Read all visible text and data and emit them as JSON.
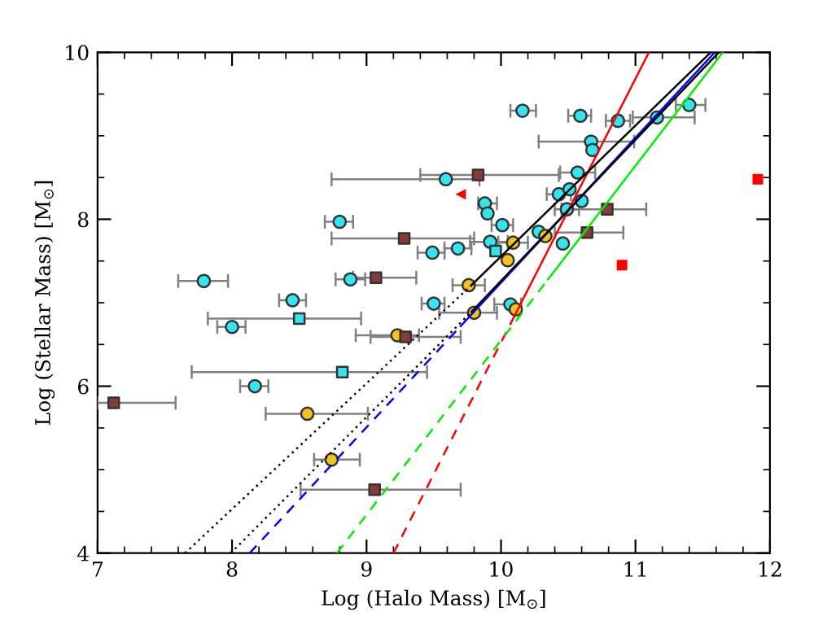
{
  "chart_data": {
    "type": "scatter",
    "xlabel": "Log (Halo Mass) [M$_{⊙}$]",
    "ylabel": "Log (Stellar Mass) [M$_{⊙}$]",
    "xlim": [
      7,
      12
    ],
    "ylim": [
      4,
      10
    ],
    "xticks": [
      7,
      8,
      9,
      10,
      11,
      12
    ],
    "yticks": [
      4,
      6,
      8,
      10
    ],
    "grid": false,
    "legend": false,
    "series": [
      {
        "type": "line",
        "color": "#ff0000",
        "line_style": "dashed",
        "marker": "none",
        "x": [
          9.2,
          10.1
        ],
        "values": [
          4,
          6.84
        ]
      },
      {
        "type": "line",
        "color": "#ff0000",
        "line_style": "solid",
        "marker": "none",
        "x": [
          10.1,
          11.1
        ],
        "values": [
          6.84,
          10
        ]
      },
      {
        "type": "line",
        "color": "#00ee00",
        "line_style": "dashed",
        "marker": "none",
        "x": [
          8.78,
          10.35
        ],
        "values": [
          4,
          7.28
        ]
      },
      {
        "type": "line",
        "color": "#00ee00",
        "line_style": "solid",
        "marker": "none",
        "x": [
          10.35,
          11.65
        ],
        "values": [
          7.28,
          10
        ]
      },
      {
        "type": "line",
        "color": "#0000ff",
        "line_style": "dashed",
        "marker": "none",
        "x": [
          8.13,
          9.7
        ],
        "values": [
          4,
          6.72
        ]
      },
      {
        "type": "line",
        "color": "#0000ff",
        "line_style": "solid",
        "marker": "none",
        "x": [
          9.7,
          11.59
        ],
        "values": [
          6.72,
          10
        ]
      },
      {
        "type": "line",
        "color": "#000000",
        "line_style": "dotted",
        "marker": "none",
        "x": [
          7.65,
          9.78
        ],
        "values": [
          4,
          7.21
        ]
      },
      {
        "type": "line",
        "color": "#000000",
        "line_style": "solid",
        "marker": "none",
        "x": [
          9.78,
          11.56
        ],
        "values": [
          7.21,
          10
        ]
      },
      {
        "type": "line",
        "color": "#000000",
        "line_style": "dotted",
        "marker": "none",
        "x": [
          7.99,
          9.78
        ],
        "values": [
          4,
          6.89
        ]
      },
      {
        "type": "line",
        "color": "#000000",
        "line_style": "solid",
        "marker": "none",
        "x": [
          9.78,
          11.62
        ],
        "values": [
          6.89,
          10
        ]
      },
      {
        "color": "#33e6ee",
        "marker": "circle",
        "x": [
          9.59,
          8.8,
          9.49,
          9.68,
          7.79,
          8.88,
          8.45,
          9.5,
          8.0,
          8.17,
          10.07,
          10.16,
          10.59,
          10.87,
          11.16,
          11.4,
          10.67,
          10.68,
          10.57,
          10.43,
          10.51,
          9.88,
          9.9,
          10.6,
          10.49,
          10.01,
          9.92,
          10.46,
          10.28
        ],
        "values": [
          8.48,
          7.97,
          7.6,
          7.65,
          7.26,
          7.28,
          7.03,
          6.99,
          6.71,
          6.0,
          6.98,
          9.3,
          9.24,
          9.18,
          9.22,
          9.37,
          8.93,
          8.83,
          8.56,
          8.3,
          8.36,
          8.19,
          8.07,
          8.22,
          8.12,
          7.93,
          7.73,
          7.71,
          7.85
        ],
        "xerrors": [
          [
            8.74,
            9.84
          ],
          [
            8.69,
            8.9
          ],
          [
            9.38,
            9.58
          ],
          [
            9.58,
            9.78
          ],
          [
            7.6,
            7.97
          ],
          [
            8.77,
            8.99
          ],
          [
            8.35,
            8.55
          ],
          [
            9.41,
            9.58
          ],
          [
            7.89,
            8.1
          ],
          [
            8.06,
            8.27
          ],
          [
            9.95,
            10.15
          ],
          [
            10.07,
            10.26
          ],
          [
            10.5,
            10.67
          ],
          [
            10.78,
            10.96
          ],
          [
            10.98,
            11.44
          ],
          [
            11.3,
            11.52
          ],
          [
            10.28,
            10.99
          ],
          null,
          [
            10.44,
            10.7
          ],
          [
            10.34,
            10.52
          ],
          null,
          [
            9.83,
            9.97
          ],
          null,
          null,
          [
            10.4,
            10.58
          ],
          [
            9.93,
            10.09
          ],
          [
            9.77,
            10.05
          ],
          null,
          null
        ]
      },
      {
        "color": "#f0c419",
        "marker": "circle",
        "x": [
          9.76,
          9.8,
          9.23,
          8.56,
          8.74,
          10.11,
          10.09,
          10.05,
          10.33
        ],
        "values": [
          7.21,
          6.88,
          6.61,
          5.67,
          5.12,
          6.92,
          7.72,
          7.51,
          7.8
        ],
        "xerrors": [
          [
            9.64,
            9.88
          ],
          [
            9.54,
            9.97
          ],
          [
            8.92,
            9.39
          ],
          [
            8.25,
            9.01
          ],
          [
            8.61,
            8.95
          ],
          null,
          [
            9.98,
            10.2
          ],
          null,
          null
        ]
      },
      {
        "color": "#33e6ee",
        "marker": "square",
        "x": [
          8.5,
          8.82,
          9.96
        ],
        "values": [
          6.81,
          6.17,
          7.62
        ],
        "xerrors": [
          [
            7.82,
            8.96
          ],
          [
            7.7,
            9.45
          ],
          null
        ]
      },
      {
        "color": "#8b3a3a",
        "marker": "square",
        "x": [
          9.83,
          9.28,
          9.07,
          9.29,
          7.12,
          9.06,
          10.79,
          10.64
        ],
        "values": [
          8.53,
          7.77,
          7.3,
          6.59,
          5.8,
          4.76,
          8.12,
          7.84
        ],
        "xerrors": [
          [
            9.4,
            10.43
          ],
          [
            8.74,
            9.8
          ],
          [
            8.9,
            9.37
          ],
          [
            9.03,
            9.7
          ],
          [
            7.0,
            7.58
          ],
          [
            8.51,
            9.7
          ],
          [
            10.45,
            11.08
          ],
          [
            10.4,
            10.91
          ]
        ]
      },
      {
        "color": "#ff0000",
        "marker": "square",
        "x": [
          11.91,
          10.9
        ],
        "values": [
          8.48,
          7.45
        ]
      },
      {
        "color": "#ff0000",
        "marker": "triangle",
        "x": [
          9.7
        ],
        "values": [
          8.3
        ]
      }
    ]
  }
}
